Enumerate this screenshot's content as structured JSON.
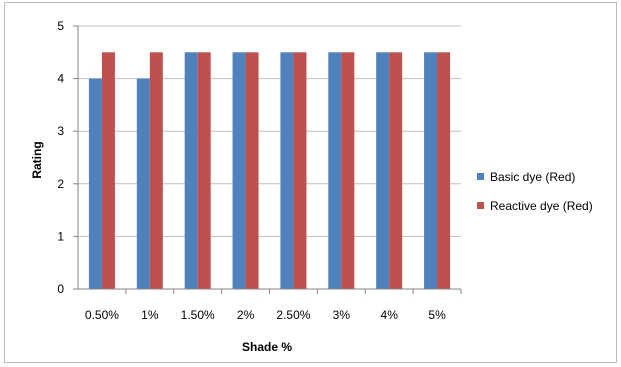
{
  "chart_data": {
    "type": "bar",
    "title": "",
    "xlabel": "Shade %",
    "ylabel": "Rating",
    "categories": [
      "0.50%",
      "1%",
      "1.50%",
      "2%",
      "2.50%",
      "3%",
      "4%",
      "5%"
    ],
    "ylim": [
      0,
      5
    ],
    "yticks": [
      "0",
      "1",
      "2",
      "3",
      "4",
      "5"
    ],
    "grid": true,
    "legend_position": "right",
    "series": [
      {
        "name": "Basic dye (Red)",
        "color": "#4f81bd",
        "values": [
          4,
          4,
          4.5,
          4.5,
          4.5,
          4.5,
          4.5,
          4.5
        ]
      },
      {
        "name": "Reactive dye (Red)",
        "color": "#c0504d",
        "values": [
          4.5,
          4.5,
          4.5,
          4.5,
          4.5,
          4.5,
          4.5,
          4.5
        ]
      }
    ]
  }
}
